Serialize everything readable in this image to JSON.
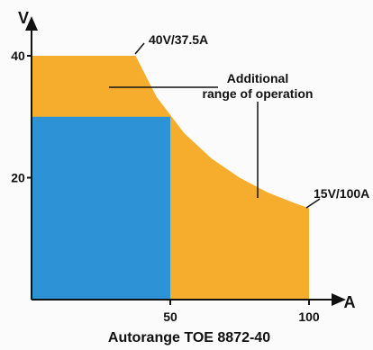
{
  "chart_data": {
    "type": "area",
    "title": "Autorange TOE 8872-40",
    "xlabel": "A",
    "ylabel": "V",
    "xlim": [
      0,
      100
    ],
    "ylim": [
      0,
      40
    ],
    "x_ticks": [
      {
        "value": 50,
        "label": "50"
      },
      {
        "value": 100,
        "label": "100"
      }
    ],
    "y_ticks": [
      {
        "value": 20,
        "label": "20"
      },
      {
        "value": 40,
        "label": "40"
      }
    ],
    "regions": [
      {
        "key": "autorange",
        "color": "#f6ad2d",
        "points": [
          [
            0,
            0
          ],
          [
            0,
            40
          ],
          [
            37.5,
            40
          ],
          [
            45,
            33.3
          ],
          [
            55,
            27.3
          ],
          [
            65,
            23.1
          ],
          [
            75,
            20
          ],
          [
            85,
            17.6
          ],
          [
            95,
            15.8
          ],
          [
            100,
            15
          ],
          [
            100,
            0
          ]
        ]
      },
      {
        "key": "standard",
        "color": "#2e93d6",
        "points": [
          [
            0,
            0
          ],
          [
            0,
            30
          ],
          [
            50,
            30
          ],
          [
            50,
            0
          ]
        ]
      }
    ],
    "annotations": [
      {
        "text": "40V/37.5A",
        "x": 37.5,
        "y": 40
      },
      {
        "text": "15V/100A",
        "x": 100,
        "y": 15
      },
      {
        "text": "Additional",
        "x": 63,
        "y": 37.5
      },
      {
        "text": "range of operation",
        "x": 63,
        "y": 34.5
      }
    ],
    "grid": false
  }
}
